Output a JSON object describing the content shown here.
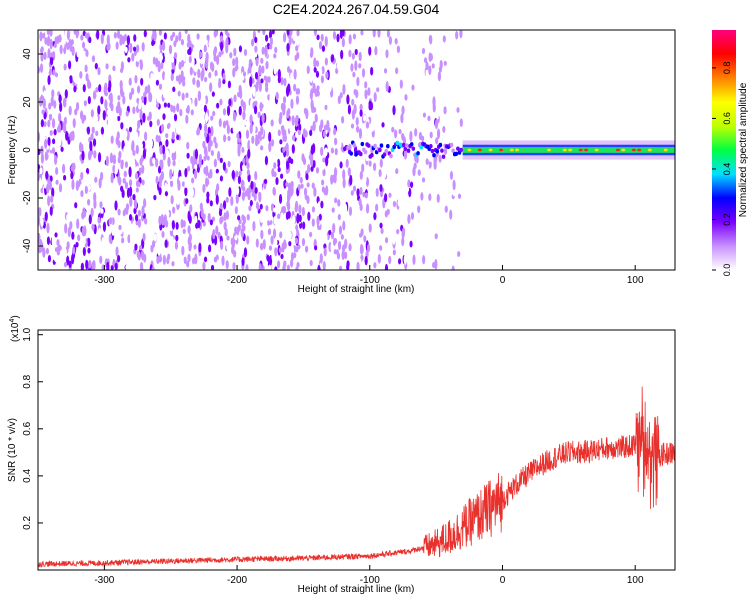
{
  "chart_data": [
    {
      "type": "heatmap",
      "title": "C2E4.2024.267.04.59.G04",
      "xlabel": "Height of straight line (km)",
      "ylabel": "Frequency (Hz)",
      "xlim": [
        -350,
        130
      ],
      "ylim": [
        -50,
        50
      ],
      "x_ticks": [
        "-300",
        "-200",
        "-100",
        "0",
        "100"
      ],
      "x_tick_values": [
        -300,
        -200,
        -100,
        0,
        100
      ],
      "y_ticks": [
        "-40",
        "-20",
        "0",
        "20",
        "40"
      ],
      "y_tick_values": [
        -40,
        -20,
        0,
        20,
        40
      ],
      "colorbar": {
        "label": "Normalized spectral amplitude",
        "range": [
          0,
          0.95
        ],
        "ticks": [
          "0.0",
          "0.2",
          "0.4",
          "0.6",
          "0.8"
        ],
        "tick_values": [
          0.0,
          0.2,
          0.4,
          0.6,
          0.8
        ],
        "colormap": [
          "#ffffff",
          "#c890ff",
          "#7a00ff",
          "#0000ff",
          "#00e0ff",
          "#00ff40",
          "#c0ff00",
          "#ffff00",
          "#ff8000",
          "#ff0000",
          "#ff0080"
        ]
      },
      "features": {
        "noise_region_x": [
          -350,
          -30
        ],
        "carrier_frequency_hz": 0,
        "carrier_region_x": [
          -120,
          130
        ]
      }
    },
    {
      "type": "line",
      "title": "",
      "xlabel": "Height of straight line (km)",
      "ylabel": "SNR (10 * v/v)",
      "y_multiplier": "(x10",
      "y_multiplier_exp": "4",
      "y_multiplier_close": ")",
      "xlim": [
        -350,
        130
      ],
      "ylim": [
        0,
        1.02
      ],
      "x_ticks": [
        "-300",
        "-200",
        "-100",
        "0",
        "100"
      ],
      "x_tick_values": [
        -300,
        -200,
        -100,
        0,
        100
      ],
      "y_ticks": [
        "0.2",
        "0.4",
        "0.6",
        "0.8",
        "1.0"
      ],
      "y_tick_values": [
        0.2,
        0.4,
        0.6,
        0.8,
        1.0
      ],
      "series_color": "#e8302c",
      "series": [
        {
          "x": [
            -350,
            -300,
            -250,
            -200,
            -150,
            -100,
            -70,
            -50,
            -40,
            -30,
            -20,
            -10,
            0,
            10,
            20,
            30,
            40,
            50,
            60,
            70,
            80,
            90,
            100,
            105,
            110,
            115,
            120,
            130
          ],
          "values": [
            0.025,
            0.03,
            0.038,
            0.045,
            0.05,
            0.06,
            0.08,
            0.11,
            0.14,
            0.18,
            0.22,
            0.26,
            0.3,
            0.36,
            0.41,
            0.45,
            0.48,
            0.5,
            0.5,
            0.51,
            0.52,
            0.52,
            0.53,
            0.55,
            0.5,
            0.46,
            0.49,
            0.5
          ]
        }
      ]
    }
  ]
}
